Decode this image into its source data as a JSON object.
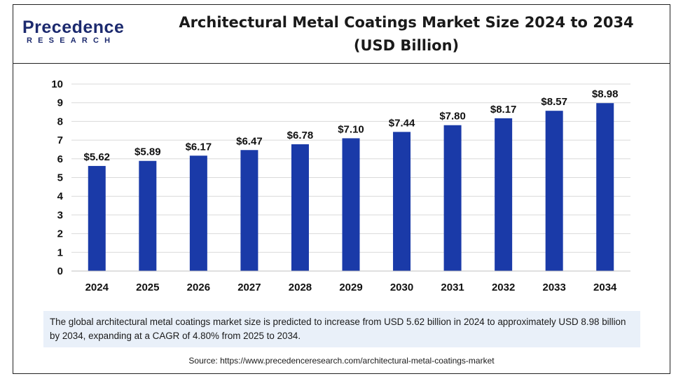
{
  "brand": {
    "logo_main": "Precedence",
    "logo_sub": "RESEARCH"
  },
  "header": {
    "title_line1": "Architectural Metal Coatings Market Size 2024 to 2034",
    "title_line2": "(USD Billion)"
  },
  "chart_data": {
    "type": "bar",
    "categories": [
      "2024",
      "2025",
      "2026",
      "2027",
      "2028",
      "2029",
      "2030",
      "2031",
      "2032",
      "2033",
      "2034"
    ],
    "values": [
      5.62,
      5.89,
      6.17,
      6.47,
      6.78,
      7.1,
      7.44,
      7.8,
      8.17,
      8.57,
      8.98
    ],
    "value_labels": [
      "$5.62",
      "$5.89",
      "$6.17",
      "$6.47",
      "$6.78",
      "$7.10",
      "$7.44",
      "$7.80",
      "$8.17",
      "$8.57",
      "$8.98"
    ],
    "y_ticks": [
      "0",
      "1",
      "2",
      "3",
      "4",
      "5",
      "6",
      "7",
      "8",
      "9",
      "10"
    ],
    "ylim": [
      0,
      10
    ],
    "grid": true,
    "bar_color": "#1a3aa8",
    "grid_color": "#d9d9d9"
  },
  "note": {
    "text": "The global architectural metal coatings market size is predicted to increase from USD 5.62 billion in 2024 to approximately USD 8.98 billion by 2034, expanding at a CAGR of 4.80% from 2025 to 2034."
  },
  "footer": {
    "source": "Source: https://www.precedenceresearch.com/architectural-metal-coatings-market"
  }
}
